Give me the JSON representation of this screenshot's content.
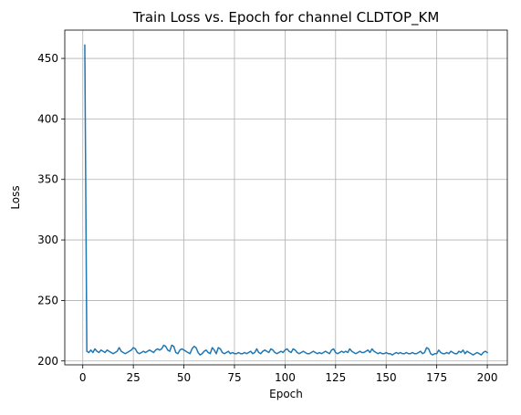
{
  "chart_data": {
    "type": "line",
    "title": "Train Loss vs. Epoch for channel CLDTOP_KM",
    "xlabel": "Epoch",
    "ylabel": "Loss",
    "xlim": [
      -8.9,
      209.9
    ],
    "ylim": [
      196.8,
      473.4
    ],
    "xticks": [
      0,
      25,
      50,
      75,
      100,
      125,
      150,
      175,
      200
    ],
    "xtick_labels": [
      "0",
      "25",
      "50",
      "75",
      "100",
      "125",
      "150",
      "175",
      "200"
    ],
    "yticks": [
      200,
      250,
      300,
      350,
      400,
      450
    ],
    "ytick_labels": [
      "200",
      "250",
      "300",
      "350",
      "400",
      "450"
    ],
    "grid": true,
    "color": "#1f77b4",
    "series": [
      {
        "x": [
          1,
          2,
          3,
          4,
          5,
          6,
          7,
          8,
          9,
          10,
          11,
          12,
          13,
          14,
          15,
          16,
          17,
          18,
          19,
          20,
          21,
          22,
          23,
          24,
          25,
          26,
          27,
          28,
          29,
          30,
          31,
          32,
          33,
          34,
          35,
          36,
          37,
          38,
          39,
          40,
          41,
          42,
          43,
          44,
          45,
          46,
          47,
          48,
          49,
          50,
          51,
          52,
          53,
          54,
          55,
          56,
          57,
          58,
          59,
          60,
          61,
          62,
          63,
          64,
          65,
          66,
          67,
          68,
          69,
          70,
          71,
          72,
          73,
          74,
          75,
          76,
          77,
          78,
          79,
          80,
          81,
          82,
          83,
          84,
          85,
          86,
          87,
          88,
          89,
          90,
          91,
          92,
          93,
          94,
          95,
          96,
          97,
          98,
          99,
          100,
          101,
          102,
          103,
          104,
          105,
          106,
          107,
          108,
          109,
          110,
          111,
          112,
          113,
          114,
          115,
          116,
          117,
          118,
          119,
          120,
          121,
          122,
          123,
          124,
          125,
          126,
          127,
          128,
          129,
          130,
          131,
          132,
          133,
          134,
          135,
          136,
          137,
          138,
          139,
          140,
          141,
          142,
          143,
          144,
          145,
          146,
          147,
          148,
          149,
          150,
          151,
          152,
          153,
          154,
          155,
          156,
          157,
          158,
          159,
          160,
          161,
          162,
          163,
          164,
          165,
          166,
          167,
          168,
          169,
          170,
          171,
          172,
          173,
          174,
          175,
          176,
          177,
          178,
          179,
          180,
          181,
          182,
          183,
          184,
          185,
          186,
          187,
          188,
          189,
          190,
          191,
          192,
          193,
          194,
          195,
          196,
          197,
          198,
          199,
          200
        ],
        "values": [
          461,
          208,
          207,
          209,
          207,
          210,
          208,
          207,
          209,
          208,
          207,
          209,
          208,
          207,
          206,
          207,
          208,
          211,
          208,
          207,
          206,
          207,
          208,
          209,
          211,
          210,
          207,
          206,
          207,
          208,
          207,
          208,
          209,
          208,
          207,
          209,
          210,
          209,
          210,
          213,
          212,
          209,
          208,
          213,
          212,
          207,
          206,
          209,
          210,
          209,
          208,
          207,
          206,
          210,
          212,
          211,
          207,
          205,
          206,
          208,
          209,
          207,
          206,
          211,
          209,
          206,
          211,
          210,
          207,
          206,
          207,
          208,
          206,
          207,
          206,
          206,
          207,
          206,
          206,
          207,
          206,
          207,
          208,
          206,
          207,
          210,
          207,
          206,
          208,
          209,
          208,
          207,
          210,
          209,
          207,
          206,
          207,
          208,
          207,
          209,
          210,
          208,
          207,
          210,
          209,
          207,
          206,
          207,
          208,
          207,
          206,
          206,
          207,
          208,
          207,
          206,
          207,
          206,
          207,
          208,
          207,
          206,
          209,
          210,
          207,
          206,
          207,
          208,
          207,
          208,
          207,
          210,
          208,
          207,
          206,
          207,
          208,
          207,
          207,
          208,
          209,
          207,
          210,
          208,
          207,
          206,
          207,
          206,
          206,
          207,
          206,
          206,
          205,
          206,
          207,
          206,
          207,
          206,
          206,
          207,
          206,
          206,
          207,
          206,
          206,
          207,
          208,
          206,
          207,
          211,
          210,
          206,
          205,
          206,
          206,
          209,
          207,
          206,
          206,
          207,
          206,
          208,
          207,
          206,
          206,
          208,
          207,
          209,
          206,
          208,
          207,
          206,
          205,
          206,
          207,
          206,
          205,
          207,
          208,
          207
        ]
      }
    ]
  }
}
